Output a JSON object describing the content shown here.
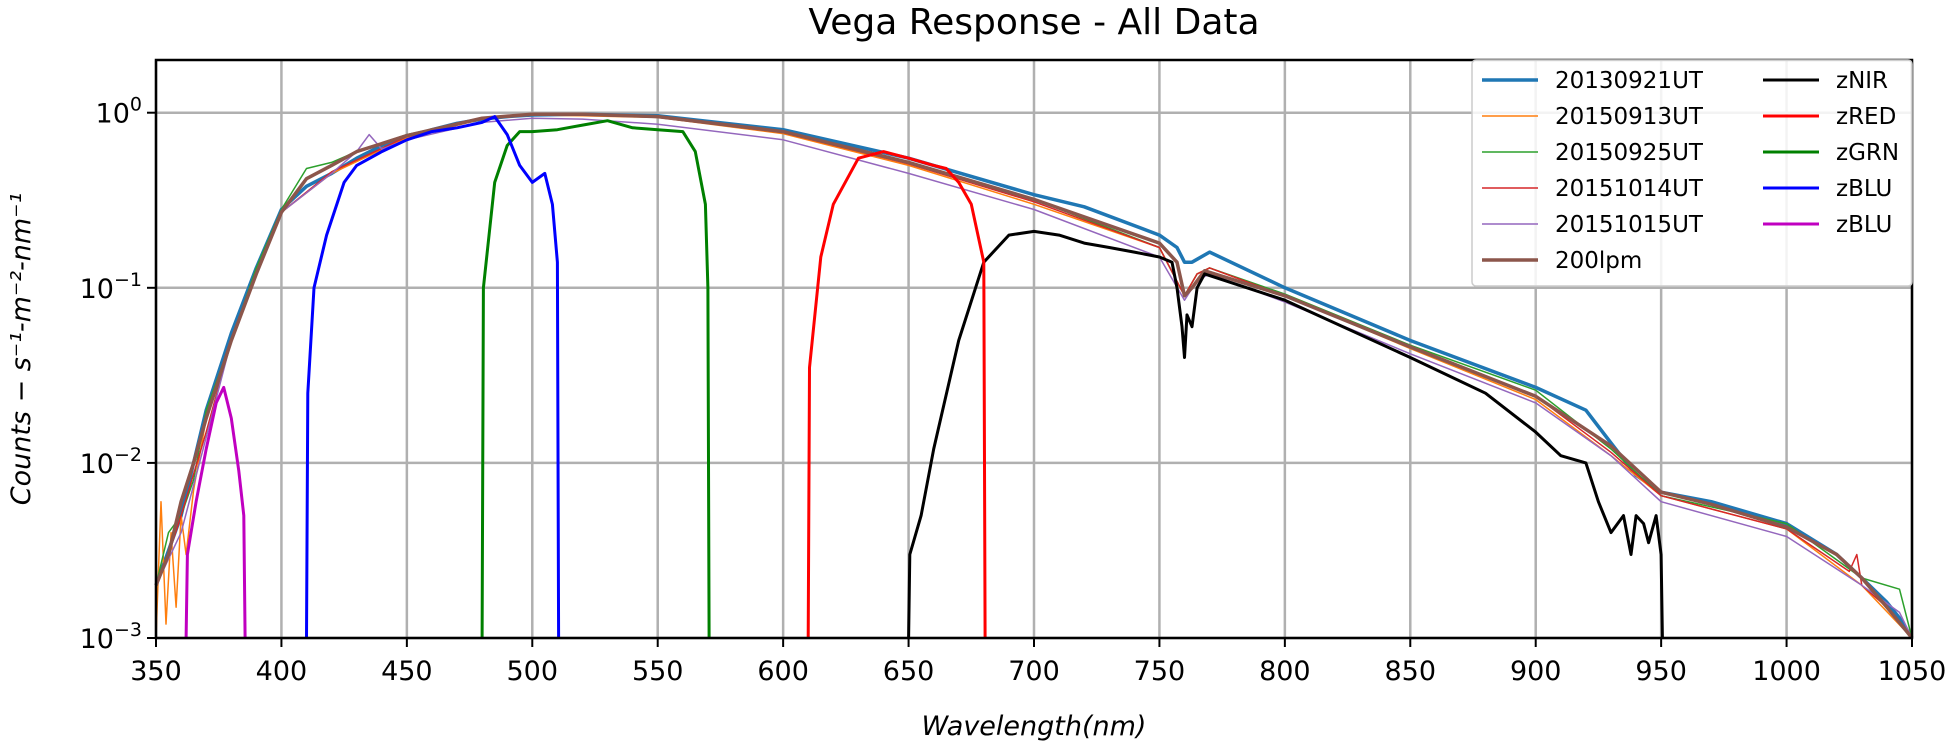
{
  "chart_data": {
    "type": "line",
    "title": "Vega Response - All Data",
    "xlabel": "Wavelength(nm)",
    "ylabel": "Counts − s⁻¹-m⁻²-nm⁻¹",
    "xlim": [
      350,
      1050
    ],
    "ylim": [
      0.001,
      2
    ],
    "yscale": "log",
    "grid": true,
    "legend_position": "top-right",
    "legend_columns": 2,
    "x_ticks": [
      350,
      400,
      450,
      500,
      550,
      600,
      650,
      700,
      750,
      800,
      850,
      900,
      950,
      1000,
      1050
    ],
    "x_tick_labels": [
      "350",
      "400",
      "450",
      "500",
      "550",
      "600",
      "650",
      "700",
      "750",
      "800",
      "850",
      "900",
      "950",
      "1000",
      "1050"
    ],
    "y_ticks": [
      0.001,
      0.01,
      0.1,
      1
    ],
    "y_tick_labels": [
      {
        "base": "10",
        "exp": "−3"
      },
      {
        "base": "10",
        "exp": "−2"
      },
      {
        "base": "10",
        "exp": "−1"
      },
      {
        "base": "10",
        "exp": "0"
      }
    ],
    "series": [
      {
        "name": "20130921UT",
        "color": "#1f77b4",
        "width": 3.5,
        "x": [
          350,
          360,
          365,
          370,
          380,
          390,
          400,
          410,
          420,
          430,
          440,
          450,
          460,
          470,
          480,
          490,
          500,
          520,
          550,
          600,
          650,
          700,
          720,
          750,
          757,
          760,
          763,
          770,
          800,
          850,
          900,
          920,
          930,
          940,
          950,
          970,
          1000,
          1020,
          1030,
          1040,
          1045,
          1050
        ],
        "y": [
          0.002,
          0.005,
          0.01,
          0.02,
          0.055,
          0.13,
          0.28,
          0.38,
          0.45,
          0.55,
          0.65,
          0.72,
          0.8,
          0.87,
          0.92,
          0.95,
          0.97,
          0.98,
          0.96,
          0.8,
          0.55,
          0.34,
          0.29,
          0.2,
          0.17,
          0.14,
          0.14,
          0.16,
          0.1,
          0.05,
          0.027,
          0.02,
          0.013,
          0.0085,
          0.0068,
          0.006,
          0.0045,
          0.003,
          0.0022,
          0.0016,
          0.0013,
          0.001
        ]
      },
      {
        "name": "20150913UT",
        "color": "#ff7f0e",
        "width": 1.5,
        "x": [
          350,
          352,
          354,
          356,
          358,
          360,
          362,
          365,
          370,
          380,
          390,
          400,
          420,
          450,
          480,
          500,
          520,
          550,
          600,
          650,
          700,
          750,
          760,
          765,
          770,
          800,
          850,
          900,
          930,
          950,
          1000,
          1030,
          1050
        ],
        "y": [
          0.001,
          0.006,
          0.0012,
          0.004,
          0.0015,
          0.005,
          0.003,
          0.007,
          0.018,
          0.05,
          0.12,
          0.27,
          0.45,
          0.72,
          0.92,
          0.97,
          0.96,
          0.94,
          0.76,
          0.5,
          0.3,
          0.17,
          0.09,
          0.12,
          0.13,
          0.09,
          0.045,
          0.023,
          0.011,
          0.0065,
          0.0042,
          0.002,
          0.001
        ]
      },
      {
        "name": "20150925UT",
        "color": "#2ca02c",
        "width": 1.5,
        "x": [
          350,
          355,
          360,
          365,
          370,
          380,
          390,
          400,
          410,
          420,
          430,
          450,
          480,
          500,
          520,
          550,
          600,
          650,
          700,
          750,
          760,
          765,
          770,
          800,
          850,
          900,
          930,
          950,
          1000,
          1030,
          1045,
          1050
        ],
        "y": [
          0.002,
          0.004,
          0.005,
          0.008,
          0.02,
          0.05,
          0.13,
          0.28,
          0.48,
          0.52,
          0.6,
          0.75,
          0.93,
          0.98,
          0.98,
          0.96,
          0.78,
          0.52,
          0.32,
          0.17,
          0.09,
          0.12,
          0.13,
          0.092,
          0.047,
          0.026,
          0.012,
          0.0065,
          0.0045,
          0.0022,
          0.0019,
          0.001
        ]
      },
      {
        "name": "20151014UT",
        "color": "#d62728",
        "width": 1.5,
        "x": [
          350,
          355,
          360,
          370,
          380,
          390,
          400,
          420,
          450,
          480,
          500,
          520,
          550,
          600,
          650,
          700,
          750,
          760,
          765,
          770,
          800,
          850,
          900,
          930,
          950,
          1000,
          1025,
          1028,
          1030,
          1040,
          1050
        ],
        "y": [
          0.002,
          0.003,
          0.005,
          0.015,
          0.05,
          0.12,
          0.27,
          0.46,
          0.73,
          0.92,
          0.97,
          0.97,
          0.94,
          0.77,
          0.51,
          0.31,
          0.17,
          0.09,
          0.12,
          0.13,
          0.09,
          0.046,
          0.024,
          0.0115,
          0.0065,
          0.0042,
          0.0024,
          0.003,
          0.002,
          0.0015,
          0.001
        ]
      },
      {
        "name": "20151015UT",
        "color": "#9467bd",
        "width": 1.5,
        "x": [
          350,
          360,
          370,
          380,
          390,
          400,
          420,
          430,
          435,
          440,
          450,
          480,
          500,
          520,
          550,
          600,
          650,
          700,
          750,
          760,
          765,
          770,
          800,
          850,
          900,
          930,
          950,
          1000,
          1030,
          1045,
          1050
        ],
        "y": [
          0.002,
          0.004,
          0.014,
          0.05,
          0.12,
          0.27,
          0.45,
          0.6,
          0.75,
          0.62,
          0.7,
          0.88,
          0.93,
          0.92,
          0.86,
          0.7,
          0.45,
          0.28,
          0.15,
          0.085,
          0.11,
          0.12,
          0.083,
          0.042,
          0.022,
          0.011,
          0.006,
          0.0038,
          0.002,
          0.0014,
          0.001
        ]
      },
      {
        "name": "200lpm",
        "color": "#8c564b",
        "width": 3.5,
        "x": [
          350,
          355,
          360,
          365,
          370,
          380,
          390,
          400,
          410,
          420,
          430,
          450,
          480,
          500,
          520,
          550,
          600,
          650,
          700,
          750,
          757,
          760,
          763,
          768,
          800,
          850,
          900,
          930,
          950,
          970,
          1000,
          1020,
          1030,
          1040,
          1050
        ],
        "y": [
          0.002,
          0.003,
          0.006,
          0.01,
          0.018,
          0.05,
          0.12,
          0.27,
          0.42,
          0.5,
          0.6,
          0.74,
          0.93,
          0.98,
          0.98,
          0.95,
          0.78,
          0.52,
          0.32,
          0.18,
          0.14,
          0.09,
          0.1,
          0.125,
          0.09,
          0.046,
          0.024,
          0.0125,
          0.0068,
          0.0058,
          0.0043,
          0.003,
          0.0022,
          0.0015,
          0.001
        ]
      },
      {
        "name": "zNIR",
        "color": "#000000",
        "width": 3,
        "x": [
          650,
          650.5,
          655,
          660,
          670,
          680,
          690,
          700,
          710,
          720,
          730,
          740,
          750,
          755,
          757,
          759,
          760,
          761,
          763,
          765,
          768,
          800,
          850,
          880,
          900,
          910,
          920,
          925,
          930,
          935,
          938,
          940,
          943,
          945,
          948,
          950,
          950.5
        ],
        "y": [
          0.001,
          0.003,
          0.005,
          0.012,
          0.05,
          0.14,
          0.2,
          0.21,
          0.2,
          0.18,
          0.17,
          0.16,
          0.15,
          0.14,
          0.1,
          0.06,
          0.04,
          0.07,
          0.06,
          0.1,
          0.12,
          0.085,
          0.04,
          0.025,
          0.015,
          0.011,
          0.01,
          0.006,
          0.004,
          0.005,
          0.003,
          0.005,
          0.0045,
          0.0035,
          0.005,
          0.003,
          0.001
        ]
      },
      {
        "name": "zRED",
        "color": "#ff0000",
        "width": 3,
        "x": [
          610,
          610.5,
          615,
          620,
          630,
          640,
          650,
          660,
          665,
          670,
          675,
          680,
          680.5
        ],
        "y": [
          0.001,
          0.035,
          0.15,
          0.3,
          0.55,
          0.6,
          0.55,
          0.5,
          0.48,
          0.4,
          0.3,
          0.14,
          0.001
        ]
      },
      {
        "name": "zGRN",
        "color": "#008000",
        "width": 3,
        "x": [
          480,
          480.5,
          485,
          490,
          495,
          500,
          510,
          520,
          530,
          540,
          550,
          560,
          565,
          569,
          570,
          570.5
        ],
        "y": [
          0.001,
          0.1,
          0.4,
          0.65,
          0.78,
          0.78,
          0.8,
          0.85,
          0.9,
          0.82,
          0.8,
          0.78,
          0.6,
          0.3,
          0.1,
          0.001
        ]
      },
      {
        "name": "zBLU",
        "color": "#0000ff",
        "width": 3,
        "x": [
          410,
          410.5,
          413,
          418,
          425,
          430,
          440,
          450,
          460,
          470,
          480,
          485,
          490,
          495,
          500,
          505,
          508,
          510,
          510.5
        ],
        "y": [
          0.001,
          0.025,
          0.1,
          0.2,
          0.4,
          0.5,
          0.6,
          0.7,
          0.78,
          0.82,
          0.88,
          0.95,
          0.75,
          0.5,
          0.4,
          0.45,
          0.3,
          0.14,
          0.001
        ]
      },
      {
        "name": "zBLU",
        "color": "#c000c0",
        "width": 3,
        "x": [
          362,
          362.5,
          366,
          370,
          374,
          377,
          380,
          383,
          385,
          385.5
        ],
        "y": [
          0.001,
          0.003,
          0.006,
          0.012,
          0.022,
          0.027,
          0.018,
          0.009,
          0.005,
          0.001
        ]
      }
    ]
  }
}
